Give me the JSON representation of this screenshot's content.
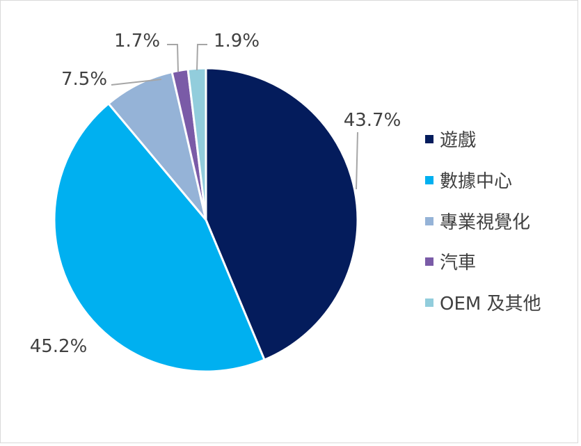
{
  "chart_data": {
    "type": "pie",
    "legend_position": "right",
    "slices": [
      {
        "label": "遊戲",
        "value": 43.7,
        "value_label": "43.7%",
        "color": "#041c5c"
      },
      {
        "label": "數據中心",
        "value": 45.2,
        "value_label": "45.2%",
        "color": "#00b0f0"
      },
      {
        "label": "專業視覺化",
        "value": 7.5,
        "value_label": "7.5%",
        "color": "#95b3d7"
      },
      {
        "label": "汽車",
        "value": 1.7,
        "value_label": "1.7%",
        "color": "#7a5ba7"
      },
      {
        "label": "OEM 及其他",
        "value": 1.9,
        "value_label": "1.9%",
        "color": "#92cddc"
      }
    ]
  }
}
